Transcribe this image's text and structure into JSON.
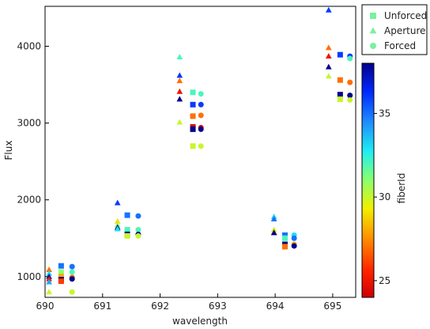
{
  "chart_data": {
    "type": "scatter",
    "title": "",
    "xlabel": "wavelength",
    "ylabel": "Flux",
    "xlim": [
      690.0,
      695.4
    ],
    "ylim": [
      730,
      4520
    ],
    "x_ticks": [
      690,
      691,
      692,
      693,
      694,
      695
    ],
    "y_ticks": [
      1000,
      2000,
      3000,
      4000
    ],
    "grid": false,
    "legend_position": "top-right-outside",
    "legend": [
      {
        "name": "Unforced",
        "marker": "square"
      },
      {
        "name": "Aperture",
        "marker": "triangle"
      },
      {
        "name": "Forced",
        "marker": "circle"
      }
    ],
    "colorbar": {
      "label": "fiberId",
      "min": 24.0,
      "max": 38.0,
      "ticks": [
        25,
        30,
        35
      ],
      "colormap": "jet"
    },
    "series": [
      {
        "name": "Unforced",
        "marker": "square",
        "points": [
          {
            "x": 690.28,
            "y": 1140,
            "c": 35
          },
          {
            "x": 690.28,
            "y": 1060,
            "c": 31
          },
          {
            "x": 690.28,
            "y": 1000,
            "c": 28
          },
          {
            "x": 690.28,
            "y": 960,
            "c": 38
          },
          {
            "x": 690.28,
            "y": 940,
            "c": 26
          },
          {
            "x": 691.43,
            "y": 1800,
            "c": 35
          },
          {
            "x": 691.43,
            "y": 1610,
            "c": 32
          },
          {
            "x": 691.43,
            "y": 1550,
            "c": 38
          },
          {
            "x": 691.43,
            "y": 1530,
            "c": 30
          },
          {
            "x": 692.57,
            "y": 3400,
            "c": 32
          },
          {
            "x": 692.57,
            "y": 3240,
            "c": 36
          },
          {
            "x": 692.57,
            "y": 3090,
            "c": 27
          },
          {
            "x": 692.57,
            "y": 2950,
            "c": 24.5
          },
          {
            "x": 692.57,
            "y": 2920,
            "c": 38
          },
          {
            "x": 692.57,
            "y": 2700,
            "c": 30
          },
          {
            "x": 694.17,
            "y": 1540,
            "c": 35
          },
          {
            "x": 694.17,
            "y": 1500,
            "c": 32
          },
          {
            "x": 694.17,
            "y": 1420,
            "c": 38
          },
          {
            "x": 694.17,
            "y": 1390,
            "c": 27
          },
          {
            "x": 695.13,
            "y": 3890,
            "c": 36
          },
          {
            "x": 695.13,
            "y": 3560,
            "c": 27
          },
          {
            "x": 695.13,
            "y": 3370,
            "c": 38
          },
          {
            "x": 695.13,
            "y": 3310,
            "c": 30
          }
        ]
      },
      {
        "name": "Aperture",
        "marker": "triangle",
        "points": [
          {
            "x": 690.07,
            "y": 1090,
            "c": 27
          },
          {
            "x": 690.07,
            "y": 1040,
            "c": 33
          },
          {
            "x": 690.07,
            "y": 1000,
            "c": 37
          },
          {
            "x": 690.07,
            "y": 970,
            "c": 25
          },
          {
            "x": 690.07,
            "y": 930,
            "c": 34
          },
          {
            "x": 690.07,
            "y": 800,
            "c": 30
          },
          {
            "x": 691.26,
            "y": 1960,
            "c": 36
          },
          {
            "x": 691.26,
            "y": 1720,
            "c": 29
          },
          {
            "x": 691.26,
            "y": 1670,
            "c": 31
          },
          {
            "x": 691.26,
            "y": 1640,
            "c": 38
          },
          {
            "x": 691.26,
            "y": 1620,
            "c": 33
          },
          {
            "x": 692.34,
            "y": 3860,
            "c": 32
          },
          {
            "x": 692.34,
            "y": 3620,
            "c": 36
          },
          {
            "x": 692.34,
            "y": 3550,
            "c": 27
          },
          {
            "x": 692.34,
            "y": 3410,
            "c": 25
          },
          {
            "x": 692.34,
            "y": 3310,
            "c": 38
          },
          {
            "x": 692.34,
            "y": 3010,
            "c": 30
          },
          {
            "x": 693.98,
            "y": 1780,
            "c": 33
          },
          {
            "x": 693.98,
            "y": 1750,
            "c": 35
          },
          {
            "x": 693.98,
            "y": 1610,
            "c": 30
          },
          {
            "x": 693.98,
            "y": 1580,
            "c": 28
          },
          {
            "x": 693.98,
            "y": 1570,
            "c": 38
          },
          {
            "x": 694.93,
            "y": 4470,
            "c": 36
          },
          {
            "x": 694.93,
            "y": 3980,
            "c": 27
          },
          {
            "x": 694.93,
            "y": 3870,
            "c": 25
          },
          {
            "x": 694.93,
            "y": 3730,
            "c": 38
          },
          {
            "x": 694.93,
            "y": 3610,
            "c": 30
          }
        ]
      },
      {
        "name": "Forced",
        "marker": "circle",
        "points": [
          {
            "x": 690.47,
            "y": 1130,
            "c": 35
          },
          {
            "x": 690.47,
            "y": 1060,
            "c": 32
          },
          {
            "x": 690.47,
            "y": 990,
            "c": 27
          },
          {
            "x": 690.47,
            "y": 970,
            "c": 38
          },
          {
            "x": 690.47,
            "y": 800,
            "c": 30
          },
          {
            "x": 691.62,
            "y": 1790,
            "c": 35
          },
          {
            "x": 691.62,
            "y": 1610,
            "c": 32
          },
          {
            "x": 691.62,
            "y": 1550,
            "c": 38
          },
          {
            "x": 691.62,
            "y": 1530,
            "c": 30
          },
          {
            "x": 692.71,
            "y": 3380,
            "c": 32
          },
          {
            "x": 692.71,
            "y": 3240,
            "c": 36
          },
          {
            "x": 692.71,
            "y": 3100,
            "c": 27
          },
          {
            "x": 692.71,
            "y": 2940,
            "c": 24.5
          },
          {
            "x": 692.71,
            "y": 2920,
            "c": 38
          },
          {
            "x": 692.71,
            "y": 2700,
            "c": 30
          },
          {
            "x": 694.33,
            "y": 1540,
            "c": 33
          },
          {
            "x": 694.33,
            "y": 1500,
            "c": 35
          },
          {
            "x": 694.33,
            "y": 1420,
            "c": 28
          },
          {
            "x": 694.33,
            "y": 1400,
            "c": 38
          },
          {
            "x": 695.3,
            "y": 3870,
            "c": 36
          },
          {
            "x": 695.3,
            "y": 3840,
            "c": 32
          },
          {
            "x": 695.3,
            "y": 3530,
            "c": 27
          },
          {
            "x": 695.3,
            "y": 3360,
            "c": 38
          },
          {
            "x": 695.3,
            "y": 3300,
            "c": 30
          }
        ]
      }
    ]
  }
}
